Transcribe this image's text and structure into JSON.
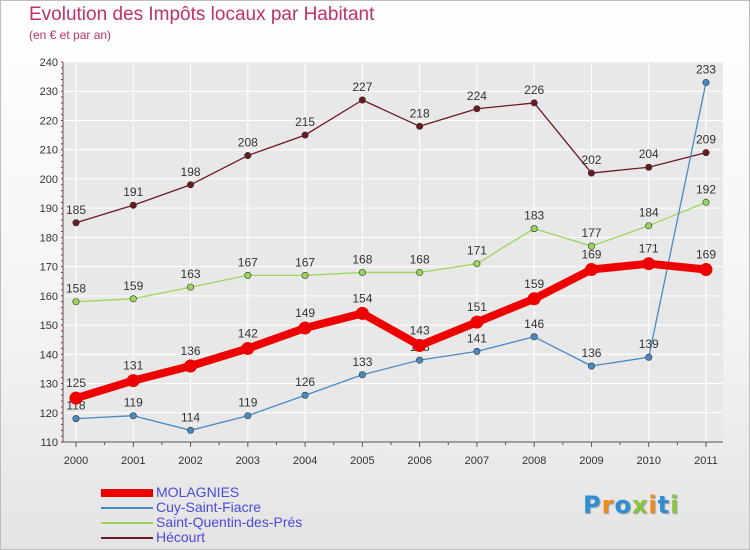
{
  "colors": {
    "title": "#c0306a",
    "legend_text": "#4a4adf",
    "axis": "#555555",
    "grid": "#ffffff",
    "tick_mark": "#d9007a"
  },
  "chart_data": {
    "type": "line",
    "title": "Evolution des Impôts locaux par Habitant",
    "subtitle": "(en € et par an)",
    "xlabel": "",
    "ylabel": "",
    "x": [
      "2000",
      "2001",
      "2002",
      "2003",
      "2004",
      "2005",
      "2006",
      "2007",
      "2008",
      "2009",
      "2010",
      "2011"
    ],
    "ylim": [
      110,
      240
    ],
    "yticks": [
      110,
      120,
      130,
      140,
      150,
      160,
      170,
      180,
      190,
      200,
      210,
      220,
      230,
      240
    ],
    "grid": true,
    "legend_position": "bottom-left",
    "series": [
      {
        "name": "Hécourt",
        "color": "#6b1a22",
        "emphasis": false,
        "values": [
          185,
          191,
          198,
          208,
          215,
          227,
          218,
          224,
          226,
          202,
          204,
          209
        ]
      },
      {
        "name": "Saint-Quentin-des-Prés",
        "color": "#9ad65a",
        "emphasis": false,
        "values": [
          158,
          159,
          163,
          167,
          167,
          168,
          168,
          171,
          183,
          177,
          184,
          192
        ]
      },
      {
        "name": "Cuy-Saint-Fiacre",
        "color": "#4a8ac4",
        "emphasis": false,
        "values": [
          118,
          119,
          114,
          119,
          126,
          133,
          138,
          141,
          146,
          136,
          139,
          233
        ]
      },
      {
        "name": "MOLAGNIES",
        "color": "#ee0000",
        "emphasis": true,
        "values": [
          125,
          131,
          136,
          142,
          149,
          154,
          143,
          151,
          159,
          169,
          171,
          169
        ]
      }
    ],
    "legend_order": [
      "MOLAGNIES",
      "Cuy-Saint-Fiacre",
      "Saint-Quentin-des-Prés",
      "Hécourt"
    ]
  },
  "logo": {
    "letters": [
      "P",
      "r",
      "o",
      "x",
      "i",
      "t",
      "i"
    ],
    "colors": [
      "#2f8fd6",
      "#f08a1c",
      "#2f8fd6",
      "#8cc63e",
      "#f08a1c",
      "#2f8fd6",
      "#8cc63e"
    ]
  }
}
